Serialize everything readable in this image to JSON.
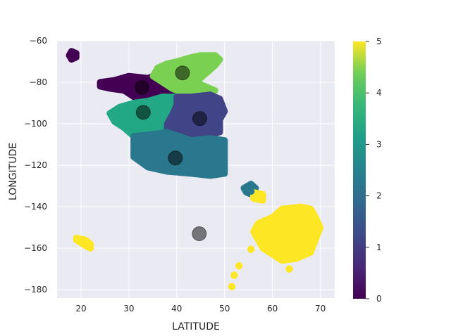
{
  "chart_data": {
    "type": "scatter",
    "xlabel": "LATITUDE",
    "ylabel": "LONGITUDE",
    "xlim": [
      15,
      73
    ],
    "ylim": [
      -184,
      -60
    ],
    "x_ticks": [
      "20",
      "30",
      "40",
      "50",
      "60",
      "70"
    ],
    "y_ticks": [
      "−60",
      "−80",
      "−100",
      "−120",
      "−140",
      "−160",
      "−180"
    ],
    "grid": true,
    "colorbar": {
      "range": [
        0,
        5
      ],
      "ticks": [
        "0",
        "1",
        "2",
        "3",
        "4",
        "5"
      ],
      "colormap": "viridis"
    },
    "clusters": [
      {
        "label": 0,
        "color": "#440154",
        "outline": [
          [
            18,
            -65
          ],
          [
            19,
            -66
          ],
          [
            19,
            -68
          ],
          [
            18,
            -69
          ],
          [
            17.5,
            -67
          ]
        ]
      },
      {
        "label": 0,
        "color": "#440154",
        "outline": [
          [
            24,
            -80
          ],
          [
            27,
            -79
          ],
          [
            30,
            -77
          ],
          [
            34,
            -78
          ],
          [
            36,
            -76
          ],
          [
            38,
            -78
          ],
          [
            40,
            -80
          ],
          [
            41,
            -84
          ],
          [
            40,
            -88
          ],
          [
            37,
            -90
          ],
          [
            35,
            -91
          ],
          [
            33,
            -89
          ],
          [
            31,
            -87
          ],
          [
            29,
            -84
          ],
          [
            26,
            -83
          ],
          [
            24,
            -82
          ]
        ]
      },
      {
        "label": 4,
        "color": "#7ad151",
        "outline": [
          [
            36,
            -73
          ],
          [
            38,
            -71
          ],
          [
            40,
            -70
          ],
          [
            43,
            -68
          ],
          [
            45,
            -67
          ],
          [
            48,
            -67
          ],
          [
            49,
            -69
          ],
          [
            48,
            -72
          ],
          [
            46,
            -76
          ],
          [
            44,
            -80
          ],
          [
            46,
            -82
          ],
          [
            48,
            -84
          ],
          [
            45,
            -86
          ],
          [
            41,
            -85
          ],
          [
            39,
            -83
          ],
          [
            37,
            -80
          ],
          [
            35,
            -77
          ]
        ]
      },
      {
        "label": 3,
        "color": "#22a884",
        "outline": [
          [
            26,
            -95
          ],
          [
            28,
            -92
          ],
          [
            31,
            -90
          ],
          [
            34,
            -89
          ],
          [
            37,
            -87
          ],
          [
            40,
            -87
          ],
          [
            41,
            -90
          ],
          [
            40,
            -95
          ],
          [
            39,
            -99
          ],
          [
            37,
            -104
          ],
          [
            34,
            -106
          ],
          [
            31,
            -106
          ],
          [
            29,
            -102
          ],
          [
            27,
            -99
          ]
        ]
      },
      {
        "label": 1,
        "color": "#414487",
        "outline": [
          [
            40,
            -87
          ],
          [
            43,
            -87
          ],
          [
            47,
            -86
          ],
          [
            49,
            -88
          ],
          [
            50,
            -94
          ],
          [
            49,
            -98
          ],
          [
            49,
            -104
          ],
          [
            46,
            -106
          ],
          [
            43,
            -108
          ],
          [
            40,
            -107
          ],
          [
            38,
            -104
          ],
          [
            38,
            -100
          ],
          [
            39,
            -96
          ],
          [
            40,
            -91
          ]
        ]
      },
      {
        "label": 2,
        "color": "#2a788e",
        "outline": [
          [
            31,
            -106
          ],
          [
            35,
            -105
          ],
          [
            38,
            -104
          ],
          [
            43,
            -108
          ],
          [
            47,
            -107
          ],
          [
            50,
            -108
          ],
          [
            50,
            -124
          ],
          [
            47,
            -125
          ],
          [
            43,
            -124
          ],
          [
            38,
            -123
          ],
          [
            34,
            -121
          ],
          [
            31,
            -116
          ]
        ]
      },
      {
        "label": 2,
        "color": "#2a788e",
        "outline": [
          [
            54,
            -131
          ],
          [
            55.5,
            -129
          ],
          [
            56.5,
            -131
          ],
          [
            55.5,
            -134
          ],
          [
            54.5,
            -133
          ]
        ]
      },
      {
        "label": 5,
        "color": "#fde725",
        "outline": [
          [
            56,
            -133
          ],
          [
            58,
            -134
          ],
          [
            58,
            -137
          ],
          [
            56,
            -136
          ]
        ]
      },
      {
        "label": 5,
        "color": "#fde725",
        "outline": [
          [
            57,
            -148
          ],
          [
            60,
            -145
          ],
          [
            62,
            -141
          ],
          [
            66,
            -140
          ],
          [
            68,
            -141
          ],
          [
            69,
            -145
          ],
          [
            70,
            -150
          ],
          [
            69,
            -156
          ],
          [
            68,
            -162
          ],
          [
            65,
            -165
          ],
          [
            62,
            -166
          ],
          [
            60,
            -163
          ],
          [
            58,
            -160
          ],
          [
            57,
            -156
          ],
          [
            56,
            -152
          ]
        ]
      },
      {
        "label": 5,
        "color": "#fde725",
        "outline": [
          [
            19,
            -155
          ],
          [
            21,
            -156
          ],
          [
            22,
            -158
          ],
          [
            22,
            -160
          ],
          [
            21,
            -159
          ],
          [
            19,
            -156
          ]
        ]
      }
    ],
    "points": [
      {
        "x": 55.5,
        "y": -160.5,
        "label": 5
      },
      {
        "x": 51.5,
        "y": -178.5,
        "label": 5
      },
      {
        "x": 52,
        "y": -173,
        "label": 5
      },
      {
        "x": 53,
        "y": -168.5,
        "label": 5
      },
      {
        "x": 63.5,
        "y": -170,
        "label": 5
      },
      {
        "x": 59,
        "y": -159,
        "label": 5
      },
      {
        "x": 58,
        "y": -156,
        "label": 5
      },
      {
        "x": 57.5,
        "y": -136,
        "label": 5
      },
      {
        "x": 55.5,
        "y": -132.5,
        "label": 2
      }
    ],
    "centroids": [
      {
        "x": 32.7,
        "y": -82.5,
        "label": 0
      },
      {
        "x": 44.8,
        "y": -97.5,
        "label": 1
      },
      {
        "x": 39.7,
        "y": -116.5,
        "label": 2
      },
      {
        "x": 33,
        "y": -94.5,
        "label": 3
      },
      {
        "x": 41.2,
        "y": -75.5,
        "label": 4
      },
      {
        "x": 44.7,
        "y": -153,
        "label": 5
      }
    ]
  }
}
